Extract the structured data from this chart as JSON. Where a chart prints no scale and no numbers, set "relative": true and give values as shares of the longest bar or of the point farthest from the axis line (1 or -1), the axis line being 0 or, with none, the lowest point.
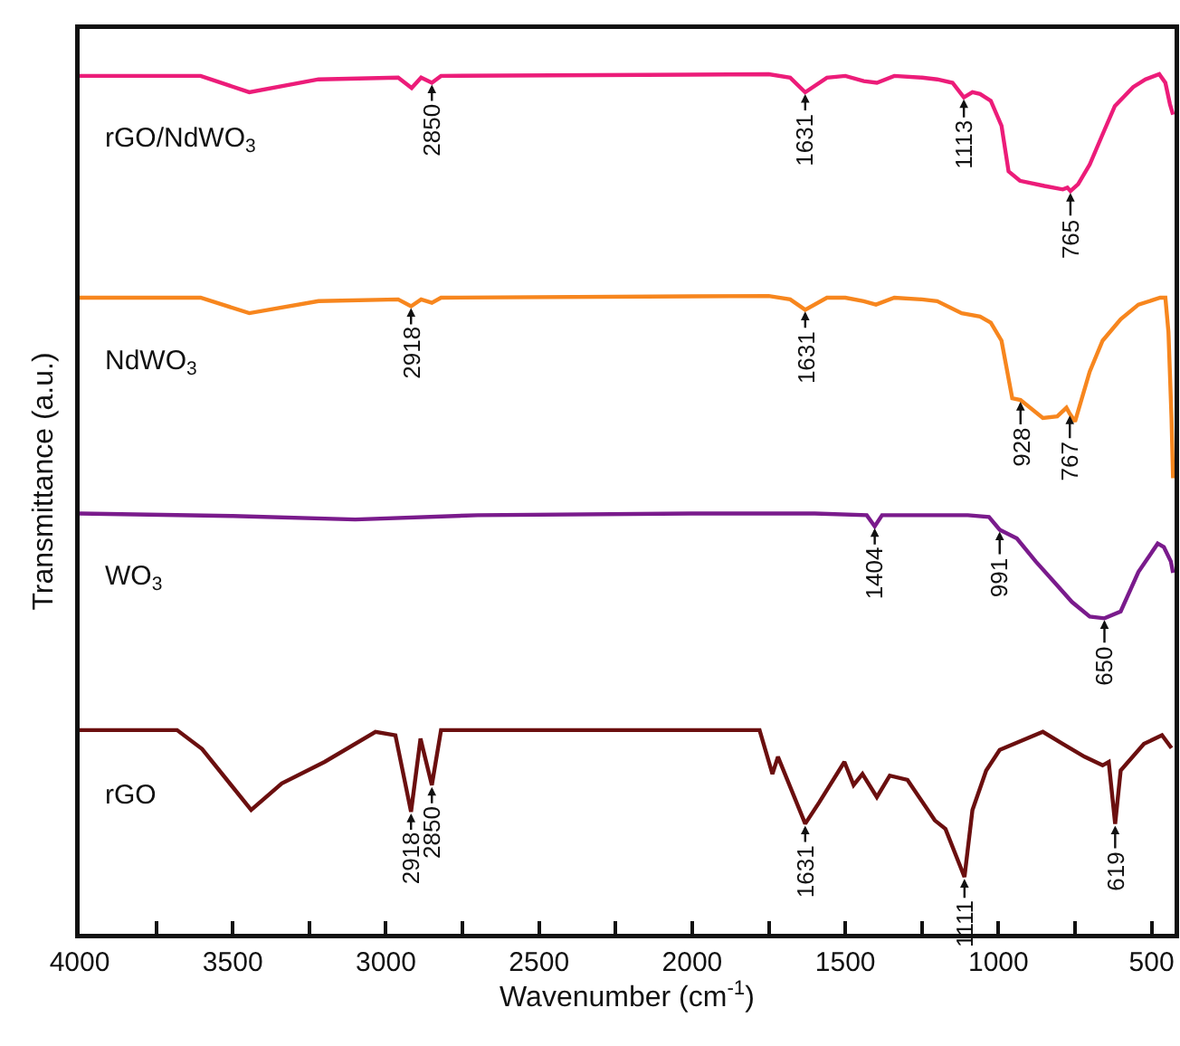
{
  "chart_data": {
    "type": "line",
    "relative": true,
    "xlabel": "Wavenumber (cm$^{-1}$)",
    "ylabel": "Transmittance (a.u.)",
    "legend": false,
    "grid": false,
    "xlim": [
      4000,
      425
    ],
    "xticks": [
      4000,
      {
        "value": 3750,
        "label": null
      },
      3500,
      {
        "value": 3250,
        "label": null
      },
      3000,
      {
        "value": 2750,
        "label": null
      },
      2500,
      {
        "value": 2250,
        "label": null
      },
      2000,
      {
        "value": 1750,
        "label": null
      },
      1500,
      {
        "value": 1250,
        "label": null
      },
      1000,
      {
        "value": 750,
        "label": null
      },
      500
    ],
    "series": [
      {
        "name": "rGO/NdWO$_{3}$",
        "color": "#ec1c79",
        "x": [
          4000,
          3700,
          3605,
          3446,
          3220,
          2960,
          2916,
          2885,
          2850,
          2820,
          1750,
          1680,
          1631,
          1560,
          1500,
          1440,
          1397,
          1340,
          1250,
          1200,
          1150,
          1113,
          1085,
          1060,
          1025,
          990,
          967,
          930,
          850,
          790,
          775,
          765,
          740,
          702,
          660,
          620,
          560,
          520,
          475,
          455,
          440,
          430
        ],
        "values": [
          0.998,
          0.998,
          0.998,
          0.979,
          0.994,
          0.996,
          0.984,
          0.996,
          0.99,
          0.998,
          1.0,
          0.996,
          0.979,
          0.996,
          0.998,
          0.992,
          0.99,
          0.998,
          0.996,
          0.994,
          0.99,
          0.973,
          0.979,
          0.977,
          0.969,
          0.94,
          0.887,
          0.876,
          0.87,
          0.866,
          0.868,
          0.864,
          0.872,
          0.895,
          0.93,
          0.963,
          0.985,
          0.994,
          1.0,
          0.99,
          0.965,
          0.953
        ]
      },
      {
        "name": "NdWO$_{3}$",
        "color": "#f7861e",
        "x": [
          4000,
          3700,
          3605,
          3446,
          3220,
          2960,
          2918,
          2885,
          2850,
          2820,
          1750,
          1680,
          1631,
          1560,
          1500,
          1440,
          1400,
          1340,
          1250,
          1200,
          1120,
          1060,
          1025,
          990,
          955,
          928,
          855,
          808,
          778,
          767,
          750,
          702,
          660,
          601,
          543,
          472,
          455,
          445,
          435,
          430
        ],
        "values": [
          0.74,
          0.74,
          0.74,
          0.722,
          0.736,
          0.738,
          0.73,
          0.738,
          0.734,
          0.74,
          0.742,
          0.738,
          0.726,
          0.74,
          0.74,
          0.736,
          0.732,
          0.74,
          0.738,
          0.736,
          0.722,
          0.718,
          0.711,
          0.69,
          0.623,
          0.621,
          0.6,
          0.602,
          0.612,
          0.605,
          0.596,
          0.654,
          0.69,
          0.715,
          0.732,
          0.74,
          0.74,
          0.7,
          0.6,
          0.53
        ]
      },
      {
        "name": "WO$_{3}$",
        "color": "#7a1b8c",
        "x": [
          4000,
          3500,
          3100,
          2700,
          2000,
          1600,
          1430,
          1404,
          1380,
          1100,
          1031,
          996,
          940,
          878,
          820,
          760,
          702,
          654,
          601,
          543,
          480,
          460,
          437,
          430
        ],
        "values": [
          0.489,
          0.486,
          0.482,
          0.487,
          0.489,
          0.489,
          0.487,
          0.474,
          0.487,
          0.487,
          0.485,
          0.47,
          0.46,
          0.433,
          0.41,
          0.386,
          0.369,
          0.367,
          0.375,
          0.421,
          0.454,
          0.45,
          0.433,
          0.42
        ]
      },
      {
        "name": "rGO",
        "color": "#6b0f0f",
        "x": [
          4000,
          3682,
          3600,
          3440,
          3340,
          3200,
          3034,
          2969,
          2918,
          2887,
          2850,
          2820,
          1780,
          1738,
          1720,
          1631,
          1585,
          1503,
          1473,
          1444,
          1397,
          1355,
          1297,
          1208,
          1173,
          1111,
          1085,
          1040,
          996,
          855,
          790,
          719,
          660,
          640,
          619,
          601,
          525,
          466,
          435
        ],
        "values": [
          0.237,
          0.237,
          0.215,
          0.144,
          0.175,
          0.2,
          0.235,
          0.231,
          0.142,
          0.227,
          0.173,
          0.237,
          0.237,
          0.186,
          0.206,
          0.128,
          0.153,
          0.2,
          0.173,
          0.186,
          0.159,
          0.184,
          0.179,
          0.132,
          0.122,
          0.066,
          0.144,
          0.19,
          0.214,
          0.235,
          0.221,
          0.206,
          0.196,
          0.2,
          0.128,
          0.19,
          0.221,
          0.231,
          0.216
        ]
      }
    ],
    "annotations": [
      {
        "text": "2850",
        "x": 2850,
        "y": 0.99
      },
      {
        "text": "1631",
        "x": 1631,
        "y": 0.979
      },
      {
        "text": "1113",
        "x": 1113,
        "y": 0.973
      },
      {
        "text": "765",
        "x": 765,
        "y": 0.864
      },
      {
        "text": "2918",
        "x": 2918,
        "y": 0.73
      },
      {
        "text": "1631",
        "x": 1631,
        "y": 0.726
      },
      {
        "text": "928",
        "x": 928,
        "y": 0.621
      },
      {
        "text": "767",
        "x": 767,
        "y": 0.605
      },
      {
        "text": "1404",
        "x": 1404,
        "y": 0.474
      },
      {
        "text": "991",
        "x": 996,
        "y": 0.47
      },
      {
        "text": "650",
        "x": 654,
        "y": 0.367
      },
      {
        "text": "2918",
        "x": 2918,
        "y": 0.142
      },
      {
        "text": "2850",
        "x": 2850,
        "y": 0.173
      },
      {
        "text": "1631",
        "x": 1631,
        "y": 0.128
      },
      {
        "text": "1111",
        "x": 1111,
        "y": 0.066
      },
      {
        "text": "619",
        "x": 619,
        "y": 0.128
      }
    ]
  }
}
